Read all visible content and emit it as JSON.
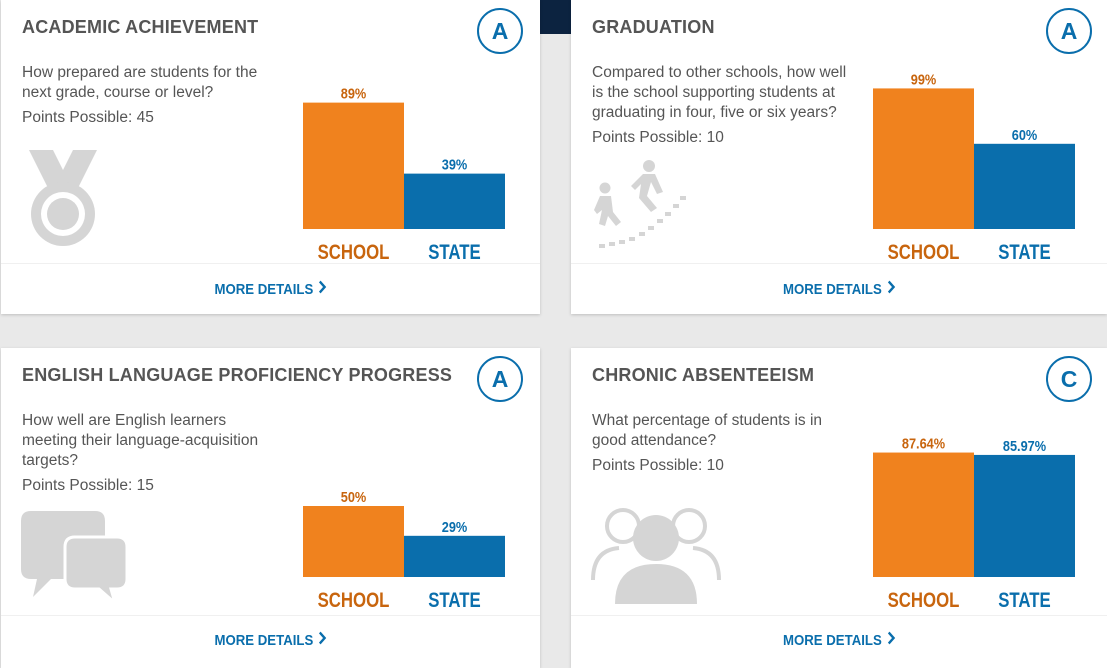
{
  "cards": [
    {
      "title": "ACADEMIC ACHIEVEMENT",
      "grade": "A",
      "question": "How prepared are students for the next grade, course or level?",
      "points": "Points Possible: 45",
      "icon": "medal-icon",
      "chart_data": {
        "type": "bar",
        "categories": [
          "SCHOOL",
          "STATE"
        ],
        "values": [
          89,
          39
        ],
        "value_labels": [
          "89%",
          "39%"
        ],
        "ylim": [
          0,
          100
        ]
      },
      "more": "MORE DETAILS"
    },
    {
      "title": "GRADUATION",
      "grade": "A",
      "question": "Compared to other schools, how well is the school supporting students at graduating in four, five or six years?",
      "points": "Points Possible: 10",
      "icon": "climbing-stairs-icon",
      "chart_data": {
        "type": "bar",
        "categories": [
          "SCHOOL",
          "STATE"
        ],
        "values": [
          99,
          60
        ],
        "value_labels": [
          "99%",
          "60%"
        ],
        "ylim": [
          0,
          100
        ]
      },
      "more": "MORE DETAILS"
    },
    {
      "title": "ENGLISH LANGUAGE PROFICIENCY PROGRESS",
      "grade": "A",
      "question": "How well are English learners meeting their language-acquisition targets?",
      "points": "Points Possible: 15",
      "icon": "chat-bubbles-icon",
      "chart_data": {
        "type": "bar",
        "categories": [
          "SCHOOL",
          "STATE"
        ],
        "values": [
          50,
          29
        ],
        "value_labels": [
          "50%",
          "29%"
        ],
        "ylim": [
          0,
          100
        ]
      },
      "more": "MORE DETAILS"
    },
    {
      "title": "CHRONIC ABSENTEEISM",
      "grade": "C",
      "question": "What percentage of students is in good attendance?",
      "points": "Points Possible: 10",
      "icon": "people-group-icon",
      "chart_data": {
        "type": "bar",
        "categories": [
          "SCHOOL",
          "STATE"
        ],
        "values": [
          87.64,
          85.97
        ],
        "value_labels": [
          "87.64%",
          "85.97%"
        ],
        "ylim": [
          0,
          100
        ]
      },
      "more": "MORE DETAILS"
    }
  ],
  "colors": {
    "school": "#f0821e",
    "state": "#0a6eac",
    "school_text": "#c8650e",
    "state_text": "#0a6eac",
    "icon": "#d5d5d5"
  }
}
